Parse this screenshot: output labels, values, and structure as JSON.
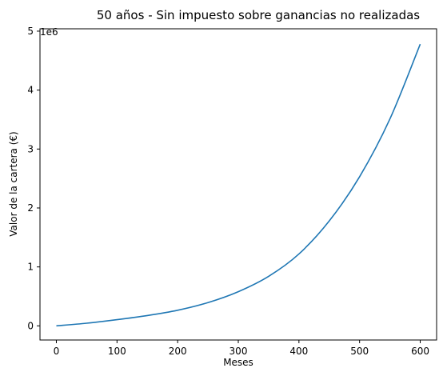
{
  "chart_data": {
    "type": "line",
    "title": "50 años - Sin impuesto sobre ganancias no realizadas",
    "xlabel": "Meses",
    "ylabel": "Valor de la cartera (€)",
    "y_offset_label": "1e6",
    "xlim": [
      -27,
      627
    ],
    "ylim": [
      -240000,
      5040000
    ],
    "x_ticks": [
      0,
      100,
      200,
      300,
      400,
      500,
      600
    ],
    "x_tick_labels": [
      "0",
      "100",
      "200",
      "300",
      "400",
      "500",
      "600"
    ],
    "y_ticks": [
      0,
      1000000,
      2000000,
      3000000,
      4000000,
      5000000
    ],
    "y_tick_labels": [
      "0",
      "1",
      "2",
      "3",
      "4",
      "5"
    ],
    "grid": false,
    "series": [
      {
        "color": "#1f77b4",
        "x": [
          0,
          50,
          100,
          150,
          200,
          250,
          300,
          350,
          400,
          450,
          500,
          550,
          600
        ],
        "y": [
          0,
          45000,
          105000,
          175000,
          265000,
          395000,
          580000,
          840000,
          1220000,
          1780000,
          2530000,
          3510000,
          4780000
        ]
      }
    ]
  }
}
